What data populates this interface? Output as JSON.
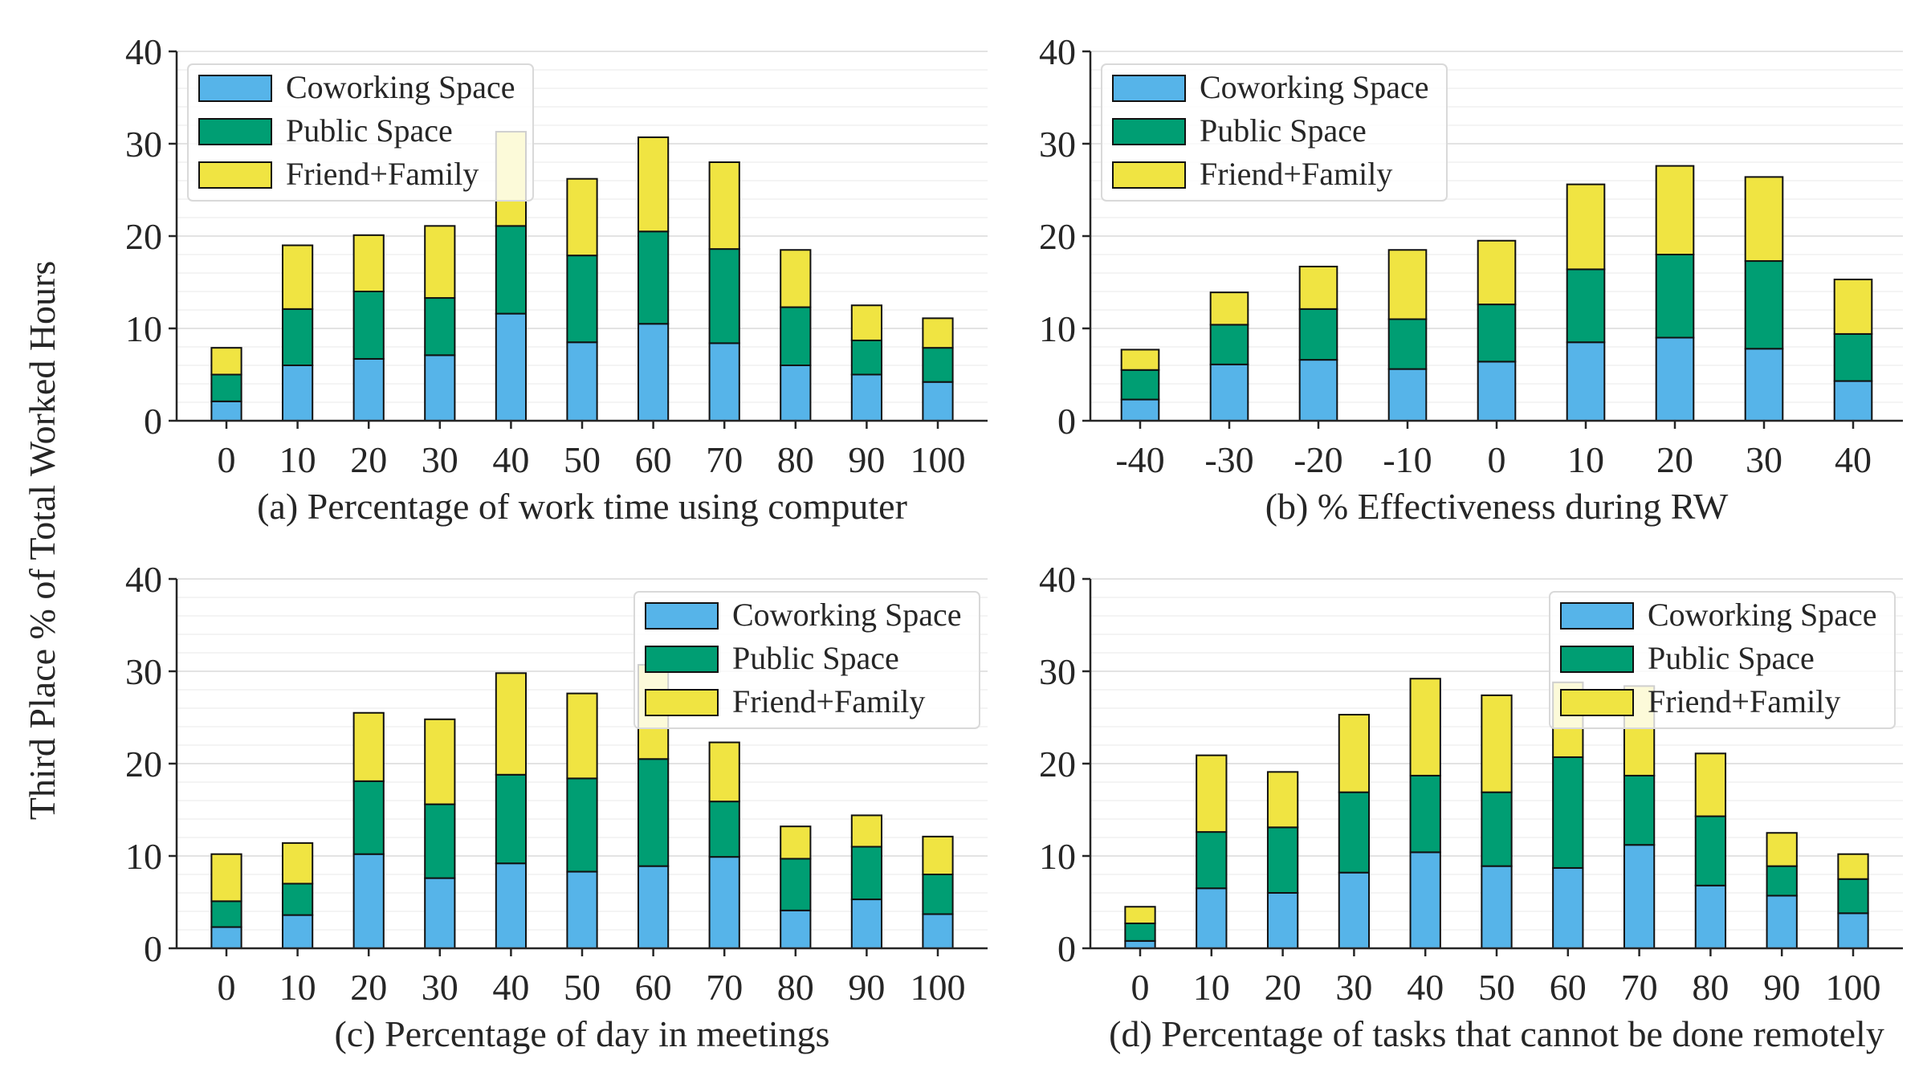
{
  "figure": {
    "ylabel": "Third Place % of Total Worked Hours",
    "colors": {
      "coworking": "#56B4E9",
      "public": "#009E73",
      "friend": "#F0E442"
    },
    "series_names": [
      "Coworking Space",
      "Public Space",
      "Friend+Family"
    ]
  },
  "chart_data": [
    {
      "type": "bar",
      "stacked": true,
      "panel": "a",
      "xlabel": "(a) Percentage of work time using computer",
      "categories": [
        "0",
        "10",
        "20",
        "30",
        "40",
        "50",
        "60",
        "70",
        "80",
        "90",
        "100"
      ],
      "ylim": [
        0,
        40
      ],
      "yticks": [
        0,
        10,
        20,
        30,
        40
      ],
      "legend": "top-left",
      "series": [
        {
          "name": "Coworking Space",
          "values": [
            2.1,
            6.0,
            6.7,
            7.1,
            11.6,
            8.5,
            10.5,
            8.4,
            6.0,
            5.0,
            4.2
          ]
        },
        {
          "name": "Public Space",
          "values": [
            2.9,
            6.1,
            7.3,
            6.2,
            9.5,
            9.4,
            10.0,
            10.2,
            6.3,
            3.7,
            3.7
          ]
        },
        {
          "name": "Friend+Family",
          "values": [
            2.9,
            6.9,
            6.1,
            7.8,
            10.2,
            8.3,
            10.2,
            9.4,
            6.2,
            3.8,
            3.2
          ]
        }
      ]
    },
    {
      "type": "bar",
      "stacked": true,
      "panel": "b",
      "xlabel": "(b) % Effectiveness during RW",
      "categories": [
        "-40",
        "-30",
        "-20",
        "-10",
        "0",
        "10",
        "20",
        "30",
        "40"
      ],
      "ylim": [
        0,
        40
      ],
      "yticks": [
        0,
        10,
        20,
        30,
        40
      ],
      "legend": "top-left",
      "series": [
        {
          "name": "Coworking Space",
          "values": [
            2.3,
            6.1,
            6.6,
            5.6,
            6.4,
            8.5,
            9.0,
            7.8,
            4.3
          ]
        },
        {
          "name": "Public Space",
          "values": [
            3.2,
            4.3,
            5.5,
            5.4,
            6.2,
            7.9,
            9.0,
            9.5,
            5.1
          ]
        },
        {
          "name": "Friend+Family",
          "values": [
            2.2,
            3.5,
            4.6,
            7.5,
            6.9,
            9.2,
            9.6,
            9.1,
            5.9
          ]
        }
      ]
    },
    {
      "type": "bar",
      "stacked": true,
      "panel": "c",
      "xlabel": "(c) Percentage of day in meetings",
      "categories": [
        "0",
        "10",
        "20",
        "30",
        "40",
        "50",
        "60",
        "70",
        "80",
        "90",
        "100"
      ],
      "ylim": [
        0,
        40
      ],
      "yticks": [
        0,
        10,
        20,
        30,
        40
      ],
      "legend": "top-right",
      "series": [
        {
          "name": "Coworking Space",
          "values": [
            2.3,
            3.6,
            10.2,
            7.6,
            9.2,
            8.3,
            8.9,
            9.9,
            4.1,
            5.3,
            3.7
          ]
        },
        {
          "name": "Public Space",
          "values": [
            2.8,
            3.4,
            7.9,
            8.0,
            9.6,
            10.1,
            11.6,
            6.0,
            5.6,
            5.7,
            4.3
          ]
        },
        {
          "name": "Friend+Family",
          "values": [
            5.1,
            4.4,
            7.4,
            9.2,
            11.0,
            9.2,
            10.2,
            6.4,
            3.5,
            3.4,
            4.1
          ]
        }
      ]
    },
    {
      "type": "bar",
      "stacked": true,
      "panel": "d",
      "xlabel": "(d) Percentage of tasks that cannot be done remotely",
      "categories": [
        "0",
        "10",
        "20",
        "30",
        "40",
        "50",
        "60",
        "70",
        "80",
        "90",
        "100"
      ],
      "ylim": [
        0,
        40
      ],
      "yticks": [
        0,
        10,
        20,
        30,
        40
      ],
      "legend": "top-right",
      "series": [
        {
          "name": "Coworking Space",
          "values": [
            0.8,
            6.5,
            6.0,
            8.2,
            10.4,
            8.9,
            8.7,
            11.2,
            6.8,
            5.7,
            3.8
          ]
        },
        {
          "name": "Public Space",
          "values": [
            1.9,
            6.1,
            7.1,
            8.7,
            8.3,
            8.0,
            12.0,
            7.5,
            7.5,
            3.2,
            3.7
          ]
        },
        {
          "name": "Friend+Family",
          "values": [
            1.8,
            8.3,
            6.0,
            8.4,
            10.5,
            10.5,
            8.1,
            9.7,
            6.8,
            3.6,
            2.7
          ]
        }
      ]
    }
  ]
}
